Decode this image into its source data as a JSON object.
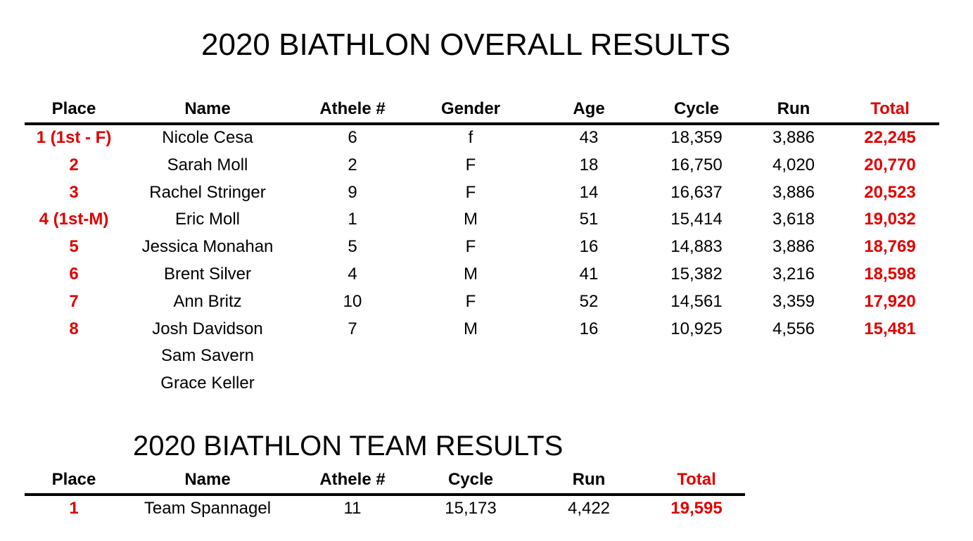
{
  "overall": {
    "title": "2020 BIATHLON OVERALL RESULTS",
    "columns": {
      "place": "Place",
      "name": "Name",
      "athlete": "Athele #",
      "gender": "Gender",
      "age": "Age",
      "cycle": "Cycle",
      "run": "Run",
      "total": "Total"
    },
    "rows": [
      {
        "place": "1 (1st - F)",
        "name": "Nicole Cesa",
        "athlete": "6",
        "gender": "f",
        "age": "43",
        "cycle": "18,359",
        "run": "3,886",
        "total": "22,245"
      },
      {
        "place": "2",
        "name": "Sarah Moll",
        "athlete": "2",
        "gender": "F",
        "age": "18",
        "cycle": "16,750",
        "run": "4,020",
        "total": "20,770"
      },
      {
        "place": "3",
        "name": "Rachel Stringer",
        "athlete": "9",
        "gender": "F",
        "age": "14",
        "cycle": "16,637",
        "run": "3,886",
        "total": "20,523"
      },
      {
        "place": "4 (1st-M)",
        "name": "Eric Moll",
        "athlete": "1",
        "gender": "M",
        "age": "51",
        "cycle": "15,414",
        "run": "3,618",
        "total": "19,032"
      },
      {
        "place": "5",
        "name": "Jessica Monahan",
        "athlete": "5",
        "gender": "F",
        "age": "16",
        "cycle": "14,883",
        "run": "3,886",
        "total": "18,769"
      },
      {
        "place": "6",
        "name": "Brent Silver",
        "athlete": "4",
        "gender": "M",
        "age": "41",
        "cycle": "15,382",
        "run": "3,216",
        "total": "18,598"
      },
      {
        "place": "7",
        "name": "Ann Britz",
        "athlete": "10",
        "gender": "F",
        "age": "52",
        "cycle": "14,561",
        "run": "3,359",
        "total": "17,920"
      },
      {
        "place": "8",
        "name": "Josh Davidson",
        "athlete": "7",
        "gender": "M",
        "age": "16",
        "cycle": "10,925",
        "run": "4,556",
        "total": "15,481"
      },
      {
        "place": "",
        "name": "Sam Savern",
        "athlete": "",
        "gender": "",
        "age": "",
        "cycle": "",
        "run": "",
        "total": ""
      },
      {
        "place": "",
        "name": "Grace Keller",
        "athlete": "",
        "gender": "",
        "age": "",
        "cycle": "",
        "run": "",
        "total": ""
      }
    ]
  },
  "team": {
    "title": "2020 BIATHLON TEAM RESULTS",
    "columns": {
      "place": "Place",
      "name": "Name",
      "athlete": "Athele #",
      "cycle": "Cycle",
      "run": "Run",
      "total": "Total"
    },
    "rows": [
      {
        "place": "1",
        "name": "Team Spannagel",
        "athlete": "11",
        "cycle": "15,173",
        "run": "4,422",
        "total": "19,595"
      }
    ]
  },
  "colors": {
    "accent": "#e00000",
    "text": "#000000",
    "background": "#ffffff"
  }
}
